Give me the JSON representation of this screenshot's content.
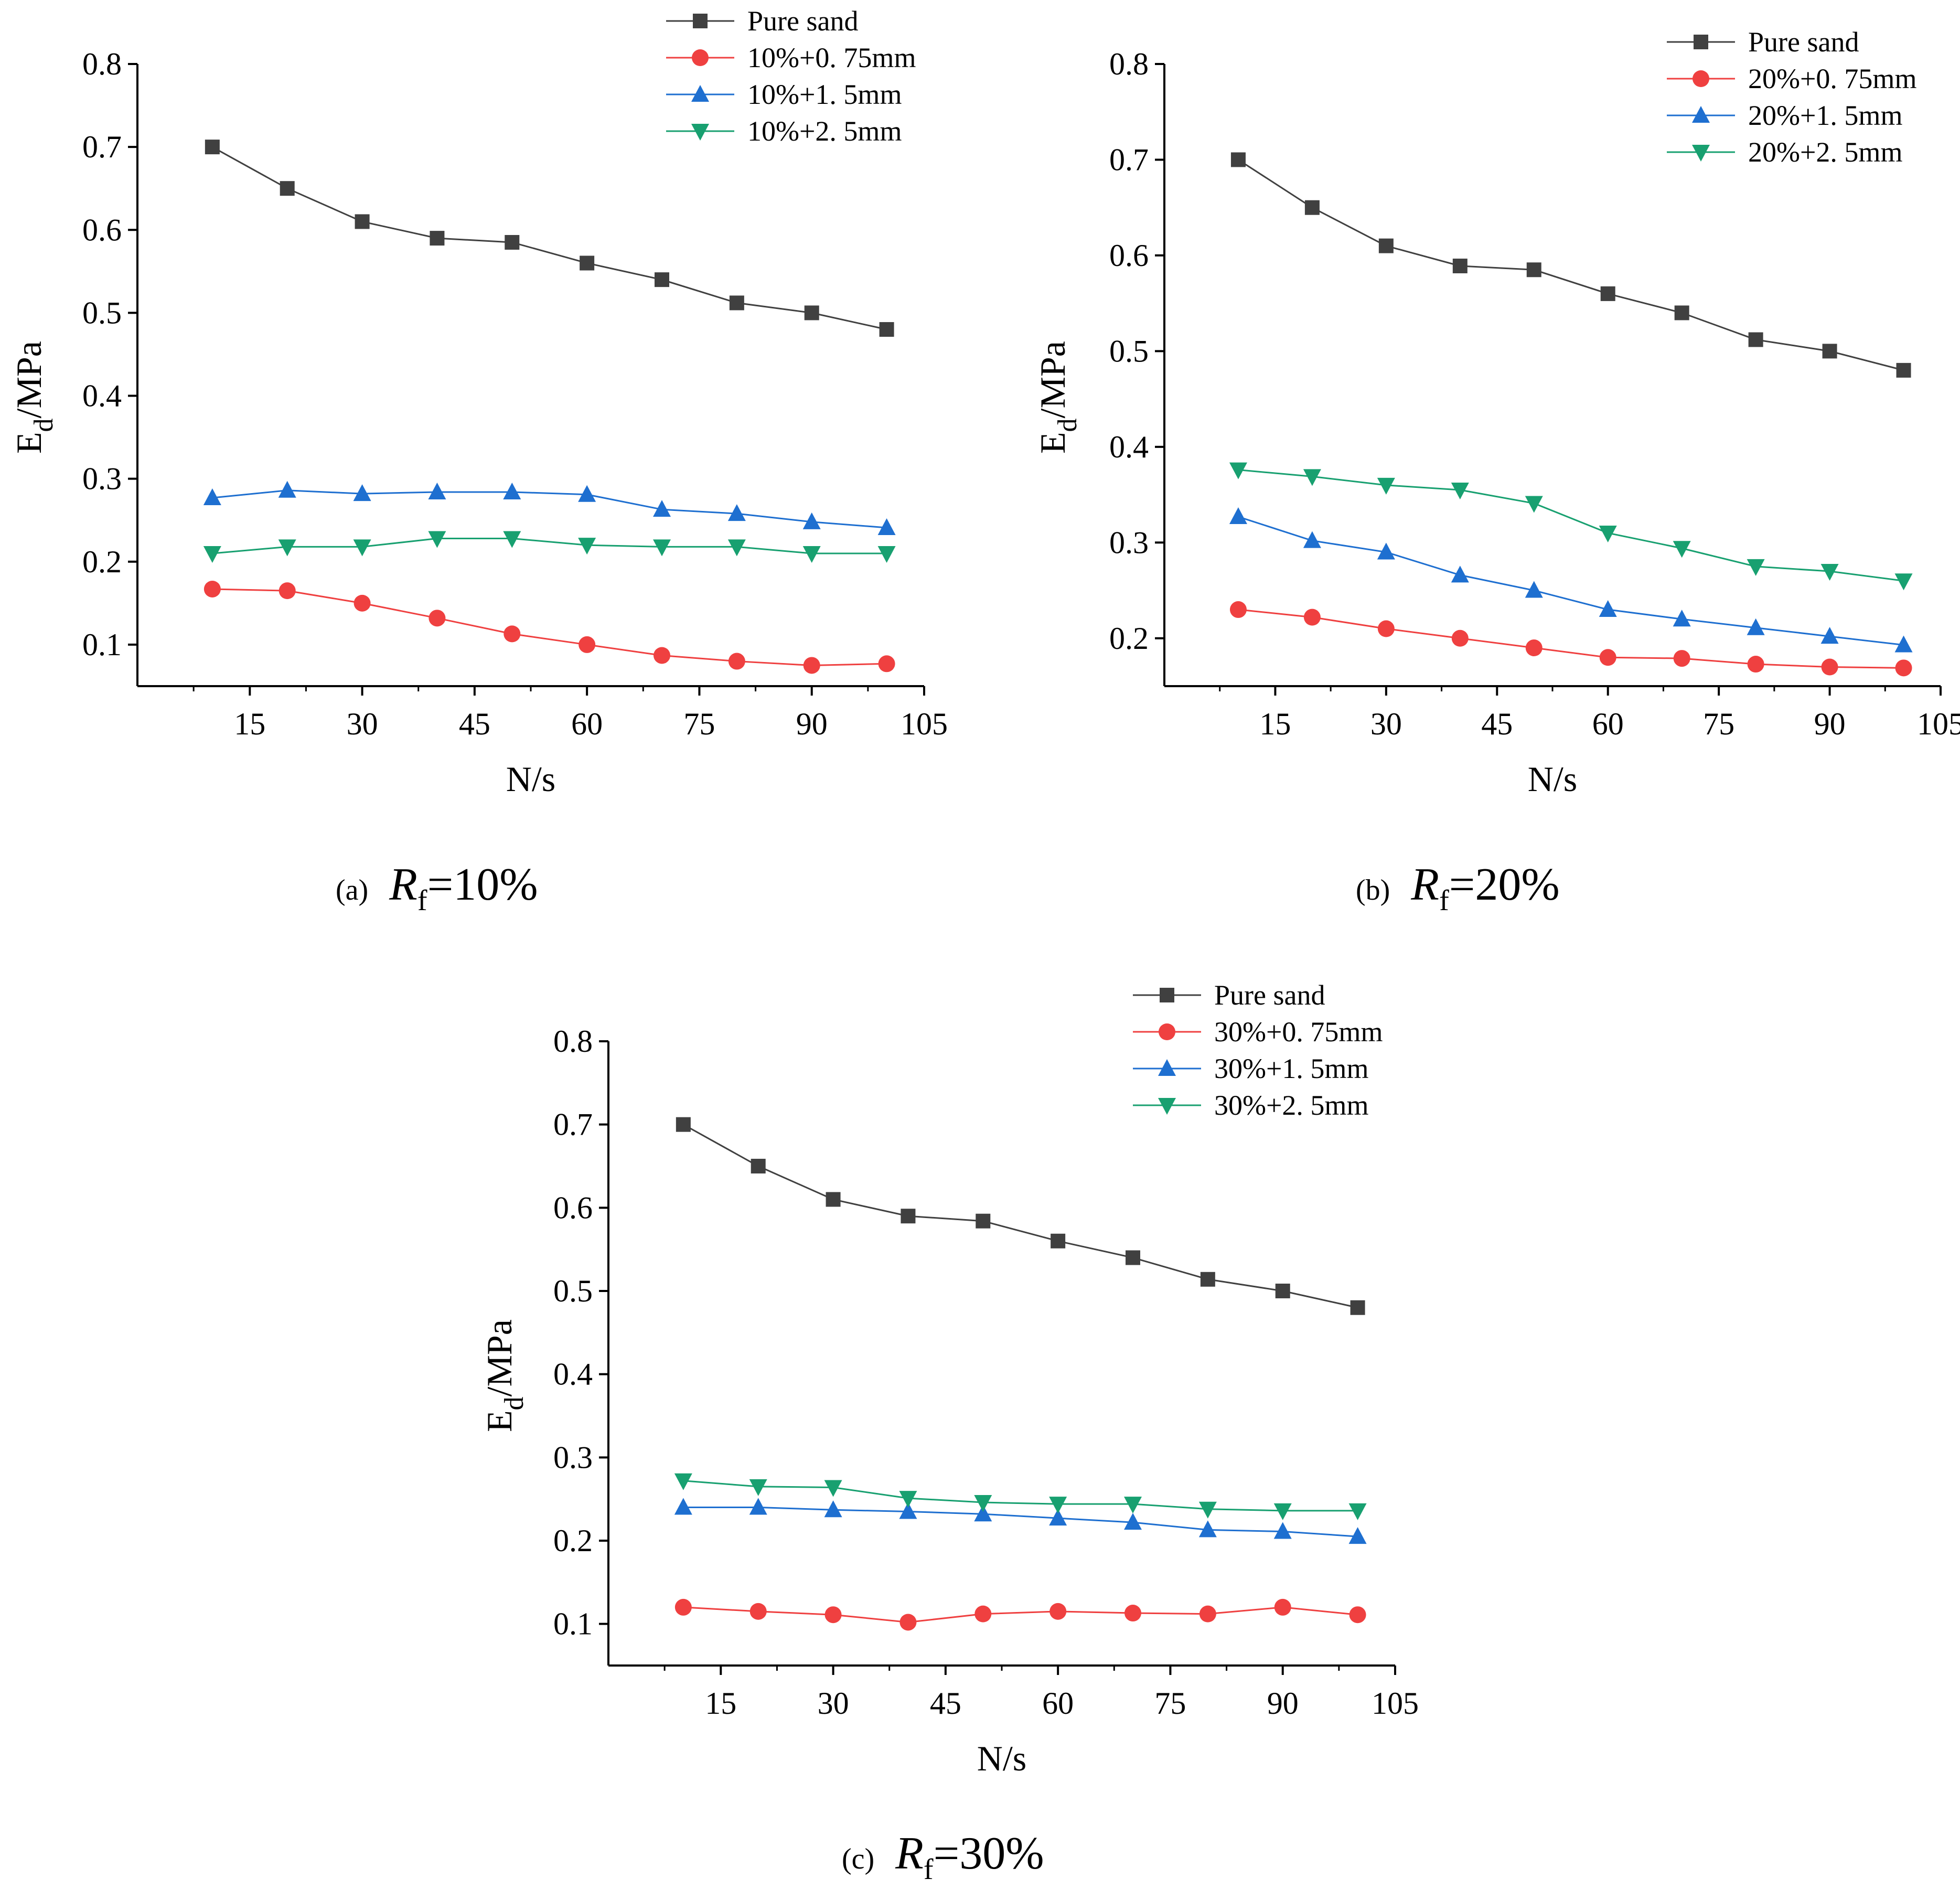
{
  "chart_data": [
    {
      "type": "line",
      "panel_label": "(a)",
      "caption_var": "R",
      "caption_sub": "f",
      "caption_value": "=10%",
      "xlabel": "N/s",
      "ylabel": "E",
      "ylabel_sub": "d",
      "ylabel_unit": "/MPa",
      "xlim": [
        0,
        105
      ],
      "ylim": [
        0.05,
        0.8
      ],
      "xticks": [
        15,
        30,
        45,
        60,
        75,
        90,
        105
      ],
      "yticks": [
        "0.1",
        "0.2",
        "0.3",
        "0.4",
        "0.5",
        "0.6",
        "0.7",
        "0.8"
      ],
      "x": [
        10,
        20,
        30,
        40,
        50,
        60,
        70,
        80,
        90,
        100
      ],
      "series": [
        {
          "name": "Pure sand",
          "color": "#404040",
          "marker": "square",
          "values": [
            0.7,
            0.65,
            0.61,
            0.59,
            0.585,
            0.56,
            0.54,
            0.512,
            0.5,
            0.48
          ]
        },
        {
          "name": "10%+0. 75mm",
          "color": "#ef4040",
          "marker": "circle",
          "values": [
            0.167,
            0.165,
            0.15,
            0.132,
            0.113,
            0.1,
            0.087,
            0.08,
            0.075,
            0.077
          ]
        },
        {
          "name": "10%+1. 5mm",
          "color": "#1e6fd0",
          "marker": "triangle-up",
          "values": [
            0.277,
            0.286,
            0.282,
            0.284,
            0.284,
            0.281,
            0.263,
            0.258,
            0.248,
            0.241
          ]
        },
        {
          "name": "10%+2. 5mm",
          "color": "#18a070",
          "marker": "triangle-down",
          "values": [
            0.21,
            0.218,
            0.218,
            0.228,
            0.228,
            0.22,
            0.218,
            0.218,
            0.21,
            0.21
          ]
        }
      ]
    },
    {
      "type": "line",
      "panel_label": "(b)",
      "caption_var": "R",
      "caption_sub": "f",
      "caption_value": "=20%",
      "xlabel": "N/s",
      "ylabel": "E",
      "ylabel_sub": "d",
      "ylabel_unit": "/MPa",
      "xlim": [
        0,
        105
      ],
      "ylim": [
        0.15,
        0.8
      ],
      "xticks": [
        15,
        30,
        45,
        60,
        75,
        90,
        105
      ],
      "yticks": [
        "0.2",
        "0.3",
        "0.4",
        "0.5",
        "0.6",
        "0.7",
        "0.8"
      ],
      "x": [
        10,
        20,
        30,
        40,
        50,
        60,
        70,
        80,
        90,
        100
      ],
      "series": [
        {
          "name": "Pure sand",
          "color": "#404040",
          "marker": "square",
          "values": [
            0.7,
            0.65,
            0.61,
            0.589,
            0.585,
            0.56,
            0.54,
            0.512,
            0.5,
            0.48
          ]
        },
        {
          "name": "20%+0. 75mm",
          "color": "#ef4040",
          "marker": "circle",
          "values": [
            0.23,
            0.222,
            0.21,
            0.2,
            0.19,
            0.18,
            0.179,
            0.173,
            0.17,
            0.169
          ]
        },
        {
          "name": "20%+1. 5mm",
          "color": "#1e6fd0",
          "marker": "triangle-up",
          "values": [
            0.327,
            0.302,
            0.29,
            0.266,
            0.25,
            0.23,
            0.22,
            0.211,
            0.202,
            0.193
          ]
        },
        {
          "name": "20%+2. 5mm",
          "color": "#18a070",
          "marker": "triangle-down",
          "values": [
            0.376,
            0.369,
            0.36,
            0.355,
            0.341,
            0.31,
            0.294,
            0.275,
            0.27,
            0.26
          ]
        }
      ]
    },
    {
      "type": "line",
      "panel_label": "(c)",
      "caption_var": "R",
      "caption_sub": "f",
      "caption_value": "=30%",
      "xlabel": "N/s",
      "ylabel": "E",
      "ylabel_sub": "d",
      "ylabel_unit": "/MPa",
      "xlim": [
        0,
        105
      ],
      "ylim": [
        0.05,
        0.8
      ],
      "xticks": [
        15,
        30,
        45,
        60,
        75,
        90,
        105
      ],
      "yticks": [
        "0.1",
        "0.2",
        "0.3",
        "0.4",
        "0.5",
        "0.6",
        "0.7",
        "0.8"
      ],
      "x": [
        10,
        20,
        30,
        40,
        50,
        60,
        70,
        80,
        90,
        100
      ],
      "series": [
        {
          "name": "Pure sand",
          "color": "#404040",
          "marker": "square",
          "values": [
            0.7,
            0.65,
            0.61,
            0.59,
            0.584,
            0.56,
            0.54,
            0.514,
            0.5,
            0.48
          ]
        },
        {
          "name": "30%+0. 75mm",
          "color": "#ef4040",
          "marker": "circle",
          "values": [
            0.12,
            0.115,
            0.111,
            0.102,
            0.112,
            0.115,
            0.113,
            0.112,
            0.12,
            0.111
          ]
        },
        {
          "name": "30%+1. 5mm",
          "color": "#1e6fd0",
          "marker": "triangle-up",
          "values": [
            0.24,
            0.24,
            0.237,
            0.235,
            0.232,
            0.227,
            0.222,
            0.213,
            0.211,
            0.205
          ]
        },
        {
          "name": "30%+2. 5mm",
          "color": "#18a070",
          "marker": "triangle-down",
          "values": [
            0.272,
            0.265,
            0.264,
            0.251,
            0.246,
            0.244,
            0.244,
            0.238,
            0.236,
            0.236
          ]
        }
      ]
    }
  ]
}
